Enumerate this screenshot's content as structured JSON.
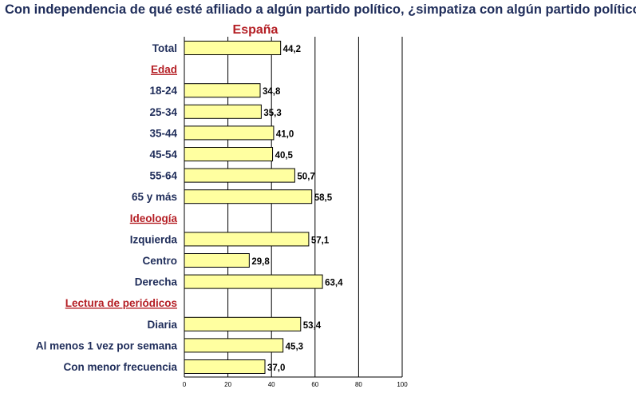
{
  "question": "Con independencia de qué esté afiliado a algún partido político, ¿simpatiza con algún partido político?",
  "colors": {
    "bar_fill": "#ffffa0",
    "bar_stroke": "#000000",
    "section": "#b41e24",
    "label": "#1f2d5a"
  },
  "chart_data": {
    "type": "bar",
    "orientation": "horizontal",
    "title": "España",
    "xlabel": "",
    "ylabel": "",
    "xlim": [
      0,
      100
    ],
    "x_ticks": [
      "0",
      "20",
      "40",
      "60",
      "80",
      "100"
    ],
    "grid": true,
    "rows": [
      {
        "label": "Total",
        "kind": "category",
        "value": 44.2,
        "value_label": "44,2"
      },
      {
        "label": "Edad",
        "kind": "section"
      },
      {
        "label": "18-24",
        "kind": "category",
        "value": 34.8,
        "value_label": "34,8"
      },
      {
        "label": "25-34",
        "kind": "category",
        "value": 35.3,
        "value_label": "35,3"
      },
      {
        "label": "35-44",
        "kind": "category",
        "value": 41.0,
        "value_label": "41,0"
      },
      {
        "label": "45-54",
        "kind": "category",
        "value": 40.5,
        "value_label": "40,5"
      },
      {
        "label": "55-64",
        "kind": "category",
        "value": 50.7,
        "value_label": "50,7"
      },
      {
        "label": "65 y más",
        "kind": "category",
        "value": 58.5,
        "value_label": "58,5"
      },
      {
        "label": "Ideología",
        "kind": "section"
      },
      {
        "label": "Izquierda",
        "kind": "category",
        "value": 57.1,
        "value_label": "57,1"
      },
      {
        "label": "Centro",
        "kind": "category",
        "value": 29.8,
        "value_label": "29,8"
      },
      {
        "label": "Derecha",
        "kind": "category",
        "value": 63.4,
        "value_label": "63,4"
      },
      {
        "label": "Lectura de periódicos",
        "kind": "section"
      },
      {
        "label": "Diaria",
        "kind": "category",
        "value": 53.4,
        "value_label": "53,4"
      },
      {
        "label": "Al menos 1 vez por semana",
        "kind": "category",
        "value": 45.3,
        "value_label": "45,3"
      },
      {
        "label": "Con menor frecuencia",
        "kind": "category",
        "value": 37.0,
        "value_label": "37,0"
      }
    ]
  }
}
